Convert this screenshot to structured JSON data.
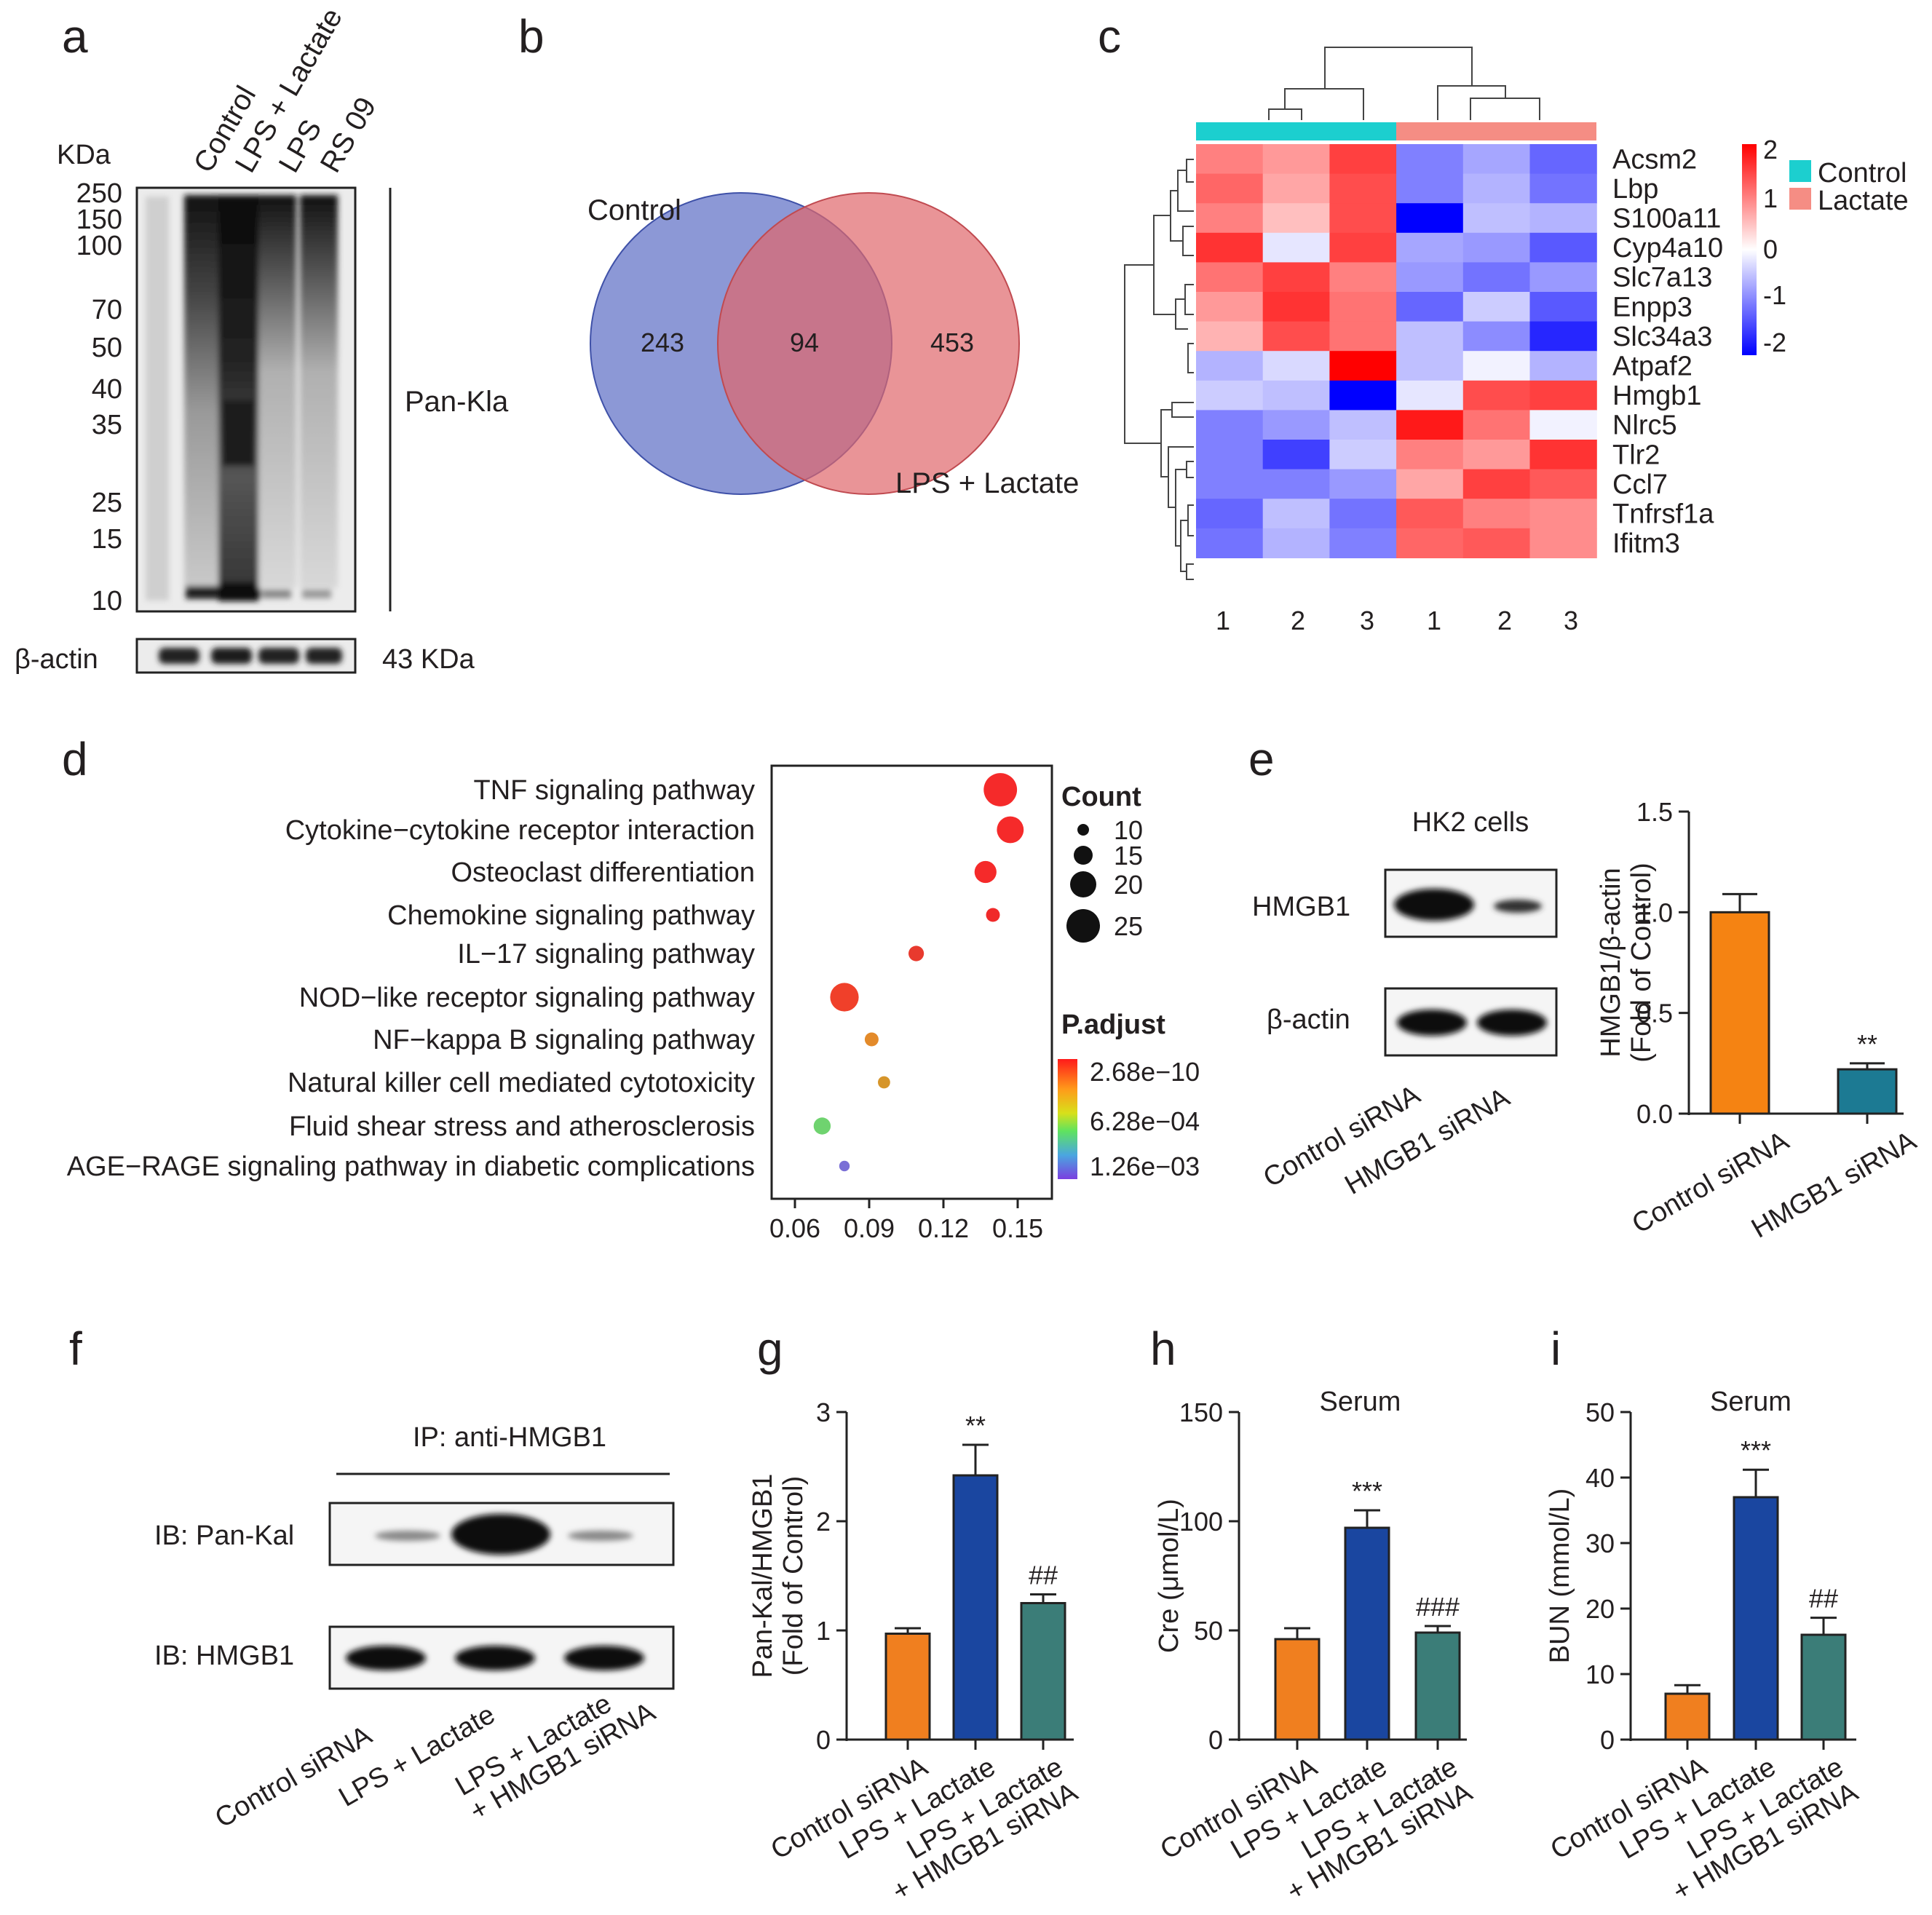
{
  "panels": {
    "a": {
      "letter": "a",
      "unit_label": "KDa",
      "lanes": [
        "Control",
        "LPS + Lactate",
        "LPS",
        "RS 09"
      ],
      "markers": [
        "250",
        "150",
        "100",
        "70",
        "50",
        "40",
        "35",
        "25",
        "15",
        "10"
      ],
      "blot_label": "Pan-Kla",
      "loading_label": "β-actin",
      "loading_size": "43 KDa"
    },
    "b": {
      "letter": "b",
      "set1_label": "Control",
      "set2_label": "LPS + Lactate",
      "only1": "243",
      "both": "94",
      "only2": "453",
      "colors": {
        "set1": "#5b6cc4",
        "set2": "#e0676b"
      }
    },
    "c": {
      "letter": "c",
      "genes": [
        "Acsm2",
        "Lbp",
        "S100a11",
        "Cyp4a10",
        "Slc7a13",
        "Enpp3",
        "Slc34a3",
        "Atpaf2",
        "Hmgb1",
        "Nlrc5",
        "Tlr2",
        "Ccl7",
        "Tnfrsf1a",
        "Ifitm3"
      ],
      "columns": [
        "1",
        "2",
        "3",
        "1",
        "2",
        "3"
      ],
      "values": [
        [
          1.0,
          0.8,
          1.5,
          -1.0,
          -0.7,
          -1.2
        ],
        [
          1.2,
          0.7,
          1.4,
          -1.0,
          -0.6,
          -1.1
        ],
        [
          1.0,
          0.5,
          1.4,
          -2.0,
          -0.5,
          -0.6
        ],
        [
          1.6,
          -0.2,
          1.5,
          -0.7,
          -0.8,
          -1.3
        ],
        [
          1.1,
          1.5,
          1.0,
          -0.8,
          -1.1,
          -0.8
        ],
        [
          0.8,
          1.6,
          1.1,
          -1.2,
          -0.4,
          -1.3
        ],
        [
          0.6,
          1.4,
          1.1,
          -0.5,
          -0.9,
          -1.7
        ],
        [
          -0.6,
          -0.3,
          2.0,
          -0.5,
          -0.1,
          -0.6
        ],
        [
          -0.4,
          -0.5,
          -2.0,
          -0.2,
          1.4,
          1.5
        ],
        [
          -1.0,
          -0.8,
          -0.5,
          1.8,
          1.1,
          -0.1
        ],
        [
          -1.0,
          -1.5,
          -0.4,
          1.0,
          0.8,
          1.6
        ],
        [
          -1.0,
          -1.0,
          -0.8,
          0.7,
          1.5,
          1.3
        ],
        [
          -1.2,
          -0.5,
          -1.1,
          1.3,
          1.0,
          0.9
        ],
        [
          -1.1,
          -0.6,
          -1.0,
          1.2,
          1.3,
          0.9
        ]
      ],
      "legend_ticks": [
        "2",
        "1",
        "0",
        "-1",
        "-2"
      ],
      "group_labels": [
        "Control",
        "Lactate"
      ],
      "group_colors": {
        "control": "#1ccfcf",
        "lactate": "#f58d84"
      }
    },
    "d": {
      "letter": "d",
      "pathways": [
        {
          "name": "TNF signaling pathway",
          "ratio": 0.143,
          "count": 25,
          "color": "#f52a2a"
        },
        {
          "name": "Cytokine−cytokine receptor interaction",
          "ratio": 0.147,
          "count": 21,
          "color": "#f52a2a"
        },
        {
          "name": "Osteoclast differentiation",
          "ratio": 0.137,
          "count": 18,
          "color": "#f52a2a"
        },
        {
          "name": "Chemokine signaling pathway",
          "ratio": 0.14,
          "count": 13,
          "color": "#f02a2a"
        },
        {
          "name": "IL−17 signaling pathway",
          "ratio": 0.109,
          "count": 14,
          "color": "#e83a2e"
        },
        {
          "name": "NOD−like receptor signaling pathway",
          "ratio": 0.08,
          "count": 22,
          "color": "#f0402a"
        },
        {
          "name": "NF−kappa B signaling pathway",
          "ratio": 0.091,
          "count": 13,
          "color": "#e38a2a"
        },
        {
          "name": "Natural killer cell mediated cytotoxicity",
          "ratio": 0.096,
          "count": 12,
          "color": "#d6952a"
        },
        {
          "name": "Fluid shear stress and atherosclerosis",
          "ratio": 0.071,
          "count": 15,
          "color": "#6fd36f"
        },
        {
          "name": "AGE−RAGE signaling pathway in diabetic complications",
          "ratio": 0.08,
          "count": 11,
          "color": "#7a6fd6"
        }
      ],
      "x_ticks": [
        "0.06",
        "0.09",
        "0.12",
        "0.15"
      ],
      "count_title": "Count",
      "count_legend": [
        "10",
        "15",
        "20",
        "25"
      ],
      "padj_title": "P.adjust",
      "padj_ticks": [
        "2.68e−10",
        "6.28e−04",
        "1.26e−03"
      ]
    },
    "e": {
      "letter": "e",
      "cell_label": "HK2 cells",
      "blot1": "HMGB1",
      "blot2": "β-actin",
      "lanes": [
        "Control siRNA",
        "HMGB1 siRNA"
      ],
      "chart_data": {
        "type": "bar",
        "categories": [
          "Control siRNA",
          "HMGB1 siRNA"
        ],
        "values": [
          1.0,
          0.22
        ],
        "errors": [
          0.09,
          0.03
        ],
        "colors": [
          "#f58312",
          "#1c7a93"
        ],
        "significance": [
          "",
          "**"
        ],
        "ylabel": "HMGB1/β-actin\n(Fold of Control)",
        "ylim": [
          0,
          1.5
        ],
        "yticks": [
          "0.0",
          "0.5",
          "1.0",
          "1.5"
        ]
      }
    },
    "f": {
      "letter": "f",
      "ip_label": "IP: anti-HMGB1",
      "blot1": "IB: Pan-Kal",
      "blot2": "IB: HMGB1",
      "lanes": [
        "Control siRNA",
        "LPS + Lactate",
        "LPS + Lactate\n+ HMGB1 siRNA"
      ]
    },
    "g": {
      "letter": "g",
      "chart_data": {
        "type": "bar",
        "title": "",
        "categories": [
          "Control siRNA",
          "LPS + Lactate",
          "LPS + Lactate\n+ HMGB1 siRNA"
        ],
        "values": [
          0.97,
          2.42,
          1.25
        ],
        "errors": [
          0.05,
          0.28,
          0.08
        ],
        "colors": [
          "#f07f1f",
          "#1a46a0",
          "#3b7d78"
        ],
        "significance": [
          "",
          "**",
          "##"
        ],
        "ylabel": "Pan-Kal/HMGB1\n(Fold of Control)",
        "ylim": [
          0,
          3
        ],
        "yticks": [
          "0",
          "1",
          "2",
          "3"
        ]
      }
    },
    "h": {
      "letter": "h",
      "chart_data": {
        "type": "bar",
        "title": "Serum",
        "categories": [
          "Control siRNA",
          "LPS + Lactate",
          "LPS + Lactate\n+ HMGB1 siRNA"
        ],
        "values": [
          46,
          97,
          49
        ],
        "errors": [
          5,
          8,
          3
        ],
        "colors": [
          "#f07f1f",
          "#1a46a0",
          "#3b7d78"
        ],
        "significance": [
          "",
          "***",
          "###"
        ],
        "ylabel": "Cre (μmol/L)",
        "ylim": [
          0,
          150
        ],
        "yticks": [
          "0",
          "50",
          "100",
          "150"
        ]
      }
    },
    "i": {
      "letter": "i",
      "chart_data": {
        "type": "bar",
        "title": "Serum",
        "categories": [
          "Control siRNA",
          "LPS + Lactate",
          "LPS + Lactate\n+ HMGB1 siRNA"
        ],
        "values": [
          7,
          37,
          16
        ],
        "errors": [
          1.3,
          4.2,
          2.6
        ],
        "colors": [
          "#f07f1f",
          "#1a46a0",
          "#3b7d78"
        ],
        "significance": [
          "",
          "***",
          "##"
        ],
        "ylabel": "BUN (mmol/L)",
        "ylim": [
          0,
          50
        ],
        "yticks": [
          "0",
          "10",
          "20",
          "30",
          "40",
          "50"
        ]
      }
    }
  }
}
